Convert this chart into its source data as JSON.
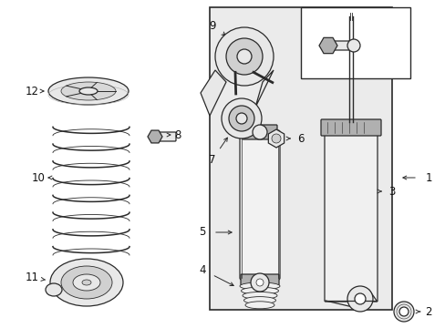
{
  "bg_color": "#ffffff",
  "line_color": "#2a2a2a",
  "label_color": "#111111",
  "fig_width": 4.89,
  "fig_height": 3.6,
  "dpi": 100,
  "box_gray": "#d8d8d8",
  "part_gray": "#e8e8e8",
  "dark_gray": "#b0b0b0"
}
